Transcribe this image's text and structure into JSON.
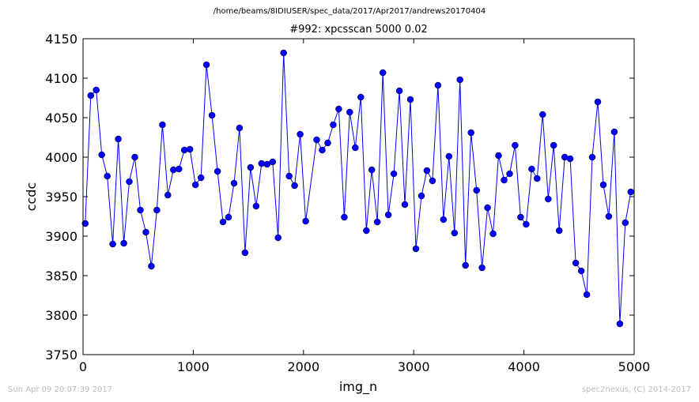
{
  "header": {
    "path": "/home/beams/8IDIUSER/spec_data/2017/Apr2017/andrews20170404"
  },
  "footer": {
    "timestamp": "Sun Apr 09 20:07:39 2017",
    "credit": "spec2nexus, (C) 2014-2017"
  },
  "chart_data": {
    "type": "line",
    "title": "#992: xpcsscan 5000 0.02",
    "xlabel": "img_n",
    "ylabel": "ccdc",
    "xlim": [
      0,
      5000
    ],
    "ylim": [
      3750,
      4150
    ],
    "xticks": [
      0,
      1000,
      2000,
      3000,
      4000,
      5000
    ],
    "xtick_labels": [
      "0",
      "1000",
      "2000",
      "3000",
      "4000",
      "5000"
    ],
    "yticks": [
      3750,
      3800,
      3850,
      3900,
      3950,
      4000,
      4050,
      4100,
      4150
    ],
    "ytick_labels": [
      "3750",
      "3800",
      "3850",
      "3900",
      "3950",
      "4000",
      "4050",
      "4100",
      "4150"
    ],
    "grid": false,
    "line_color": "#0000ff",
    "marker_color": "#0000ff",
    "x": [
      20,
      70,
      120,
      170,
      220,
      270,
      320,
      370,
      420,
      470,
      520,
      570,
      620,
      670,
      720,
      770,
      820,
      870,
      920,
      970,
      1020,
      1070,
      1120,
      1170,
      1220,
      1270,
      1320,
      1370,
      1420,
      1470,
      1520,
      1570,
      1620,
      1670,
      1720,
      1770,
      1820,
      1870,
      1920,
      1970,
      2020,
      2120,
      2170,
      2220,
      2270,
      2320,
      2370,
      2420,
      2470,
      2520,
      2570,
      2620,
      2670,
      2720,
      2770,
      2820,
      2870,
      2920,
      2970,
      3020,
      3070,
      3120,
      3170,
      3220,
      3270,
      3320,
      3370,
      3420,
      3470,
      3520,
      3570,
      3620,
      3670,
      3720,
      3770,
      3820,
      3870,
      3920,
      3970,
      4020,
      4070,
      4120,
      4170,
      4220,
      4270,
      4320,
      4370,
      4420,
      4470,
      4520,
      4570,
      4620,
      4670,
      4720,
      4770,
      4820,
      4870,
      4920,
      4970
    ],
    "y": [
      3916,
      4078,
      4085,
      4003,
      3976,
      3890,
      4023,
      3891,
      3969,
      4000,
      3933,
      3905,
      3862,
      3933,
      4041,
      3952,
      3984,
      3985,
      4009,
      4010,
      3965,
      3974,
      4117,
      4053,
      3982,
      3918,
      3924,
      3967,
      4037,
      3879,
      3987,
      3938,
      3992,
      3991,
      3994,
      3898,
      4132,
      3976,
      3964,
      4029,
      3919,
      4022,
      4009,
      4018,
      4041,
      4061,
      3924,
      4057,
      4012,
      4076,
      3907,
      3984,
      3918,
      4107,
      3927,
      3979,
      4084,
      3940,
      4073,
      3884,
      3951,
      3983,
      3970,
      4091,
      3921,
      4001,
      3904,
      4098,
      3863,
      4031,
      3958,
      3860,
      3936,
      3903,
      4002,
      3971,
      3979,
      4015,
      3924,
      3915,
      3985,
      3973,
      4054,
      3947,
      4015,
      3907,
      4000,
      3998,
      3866,
      3856,
      3826,
      4000,
      4070,
      3965,
      3925,
      4032,
      3789,
      3917,
      3956
    ]
  }
}
